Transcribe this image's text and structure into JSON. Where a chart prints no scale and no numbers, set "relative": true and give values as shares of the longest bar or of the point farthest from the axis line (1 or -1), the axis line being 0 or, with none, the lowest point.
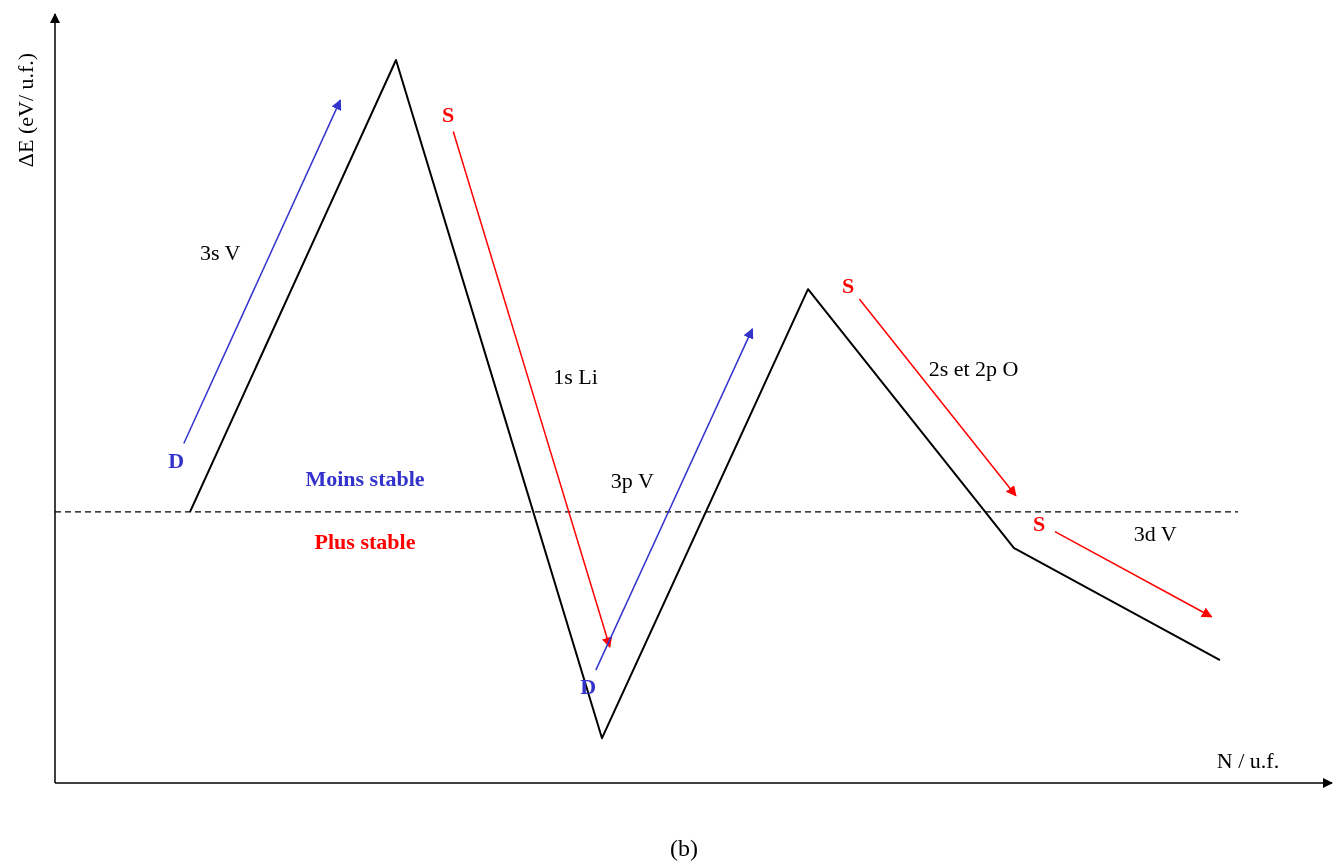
{
  "chart_data": {
    "type": "line",
    "xlabel": "N / u.f.",
    "ylabel": "ΔE (eV/ u.f.)",
    "relative": true,
    "categories": [
      null,
      null,
      null,
      null,
      null,
      null
    ],
    "series": [
      {
        "color": "#000000",
        "values": [
          0.375,
          1,
          0.062,
          0.683,
          0.325,
          0.17
        ]
      }
    ],
    "ref_lines": [
      {
        "axis": "y",
        "value": 0.375,
        "color": "#000000",
        "line_style": "dashed"
      }
    ],
    "annotations": [
      "3s V",
      "1s Li",
      "3p V",
      "2s et 2p O",
      "3d V",
      "D",
      "S",
      "D",
      "S",
      "S",
      "Moins stable",
      "Plus stable",
      "(b)"
    ]
  }
}
